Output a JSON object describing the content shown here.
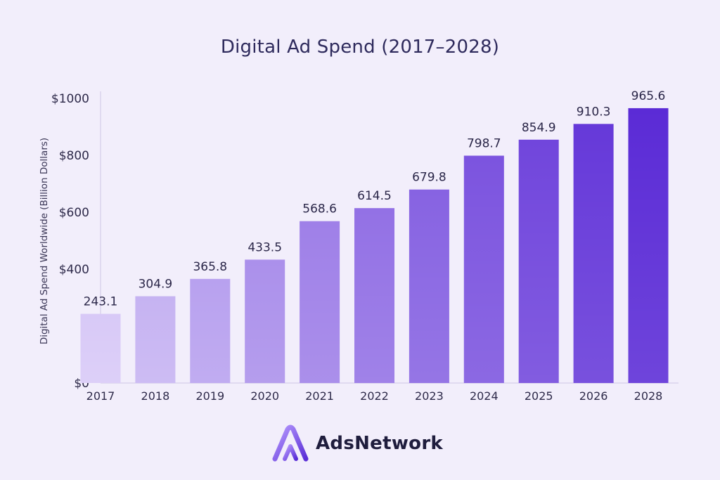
{
  "chart_data": {
    "type": "bar",
    "title": "Digital Ad Spend (2017–2028)",
    "ylabel": "Digital Ad Spend Worldwide (Billion Dollars)",
    "xlabel": "",
    "categories": [
      "2017",
      "2018",
      "2019",
      "2020",
      "2021",
      "2022",
      "2023",
      "2024",
      "2025",
      "2026",
      "2028"
    ],
    "values": [
      243.1,
      304.9,
      365.8,
      433.5,
      568.6,
      614.5,
      679.8,
      798.7,
      854.9,
      910.3,
      965.6
    ],
    "value_labels": [
      "243.1",
      "304.9",
      "365.8",
      "433.5",
      "568.6",
      "614.5",
      "679.8",
      "798.7",
      "854.9",
      "910.3",
      "965.6"
    ],
    "yticks": [
      0,
      400,
      600,
      800,
      1000
    ],
    "ytick_labels": [
      "$0",
      "$400",
      "$600",
      "$800",
      "$1000"
    ],
    "ylim": [
      0,
      1000
    ],
    "grid": false,
    "bar_gradient": [
      "#d8c9f7",
      "#5b2bd6"
    ]
  },
  "brand": {
    "name": "AdsNetwork",
    "logo_icon": "adsnetwork-logo-icon"
  }
}
